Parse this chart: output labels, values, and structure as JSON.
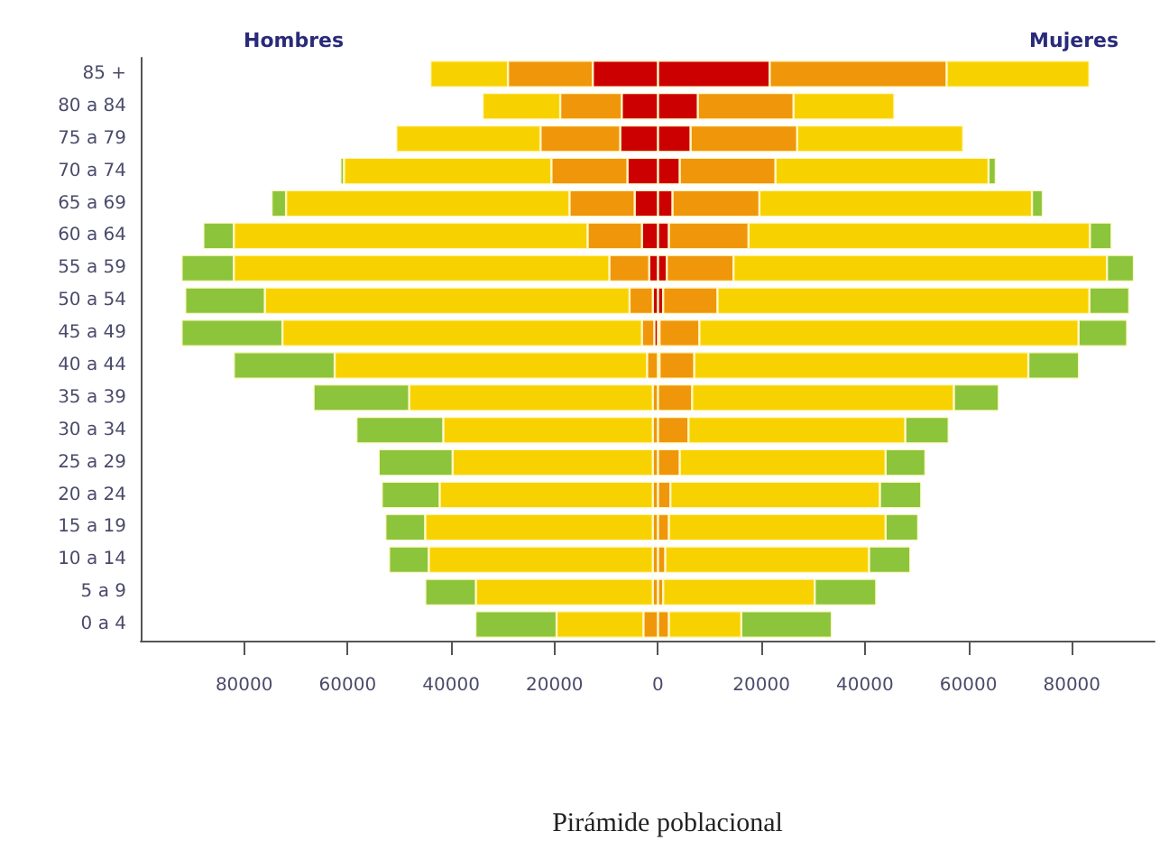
{
  "chart_data": {
    "type": "bar",
    "orientation": "horizontal",
    "stacked": true,
    "title": "Pirámide poblacional",
    "annotations": [
      "Hombres",
      "Mujeres"
    ],
    "categories": [
      "85 +",
      "80 a 84",
      "75 a 79",
      "70 a 74",
      "65 a 69",
      "60 a 64",
      "55 a 59",
      "50 a 54",
      "45 a 49",
      "40 a 44",
      "35 a 39",
      "30 a 34",
      "25 a 29",
      "20 a 24",
      "15 a 19",
      "10 a 14",
      "5 a 9",
      "0 a 4"
    ],
    "series": [
      {
        "color": "#cc0000",
        "values": [
          -12600,
          -7000,
          -7300,
          -5900,
          -4500,
          -3100,
          -1700,
          -1000,
          -700,
          null,
          null,
          null,
          null,
          null,
          null,
          null,
          null,
          null
        ]
      },
      {
        "color": "#f0960a",
        "values": [
          -16400,
          -11900,
          -15400,
          -14700,
          -12600,
          -10500,
          -7700,
          -4500,
          -2400,
          -2100,
          -1000,
          -1000,
          -1000,
          -1000,
          -1000,
          -1000,
          -1000,
          -2800
        ]
      },
      {
        "color": "#f8d200",
        "values": [
          -15000,
          -15000,
          -27900,
          -40100,
          -54800,
          -68400,
          -72600,
          -70500,
          -69500,
          -60400,
          -47100,
          -40500,
          -38700,
          -41200,
          -44000,
          -43300,
          -34200,
          -16800
        ]
      },
      {
        "color": "#8cc43c",
        "values": [
          null,
          null,
          null,
          -700,
          -2800,
          -5900,
          -10100,
          -15400,
          -19500,
          -19500,
          -18500,
          -16800,
          -14300,
          -11200,
          -7700,
          -7700,
          -9800,
          -15700
        ]
      },
      {
        "color": "#cc0000",
        "values": [
          21600,
          7700,
          6300,
          4200,
          2800,
          2100,
          1700,
          1000,
          300,
          300,
          null,
          null,
          null,
          null,
          null,
          null,
          null,
          null
        ]
      },
      {
        "color": "#f0960a",
        "values": [
          34200,
          18500,
          20600,
          18500,
          16800,
          15400,
          12900,
          10500,
          7700,
          6700,
          6600,
          5900,
          4200,
          2400,
          2100,
          1400,
          1000,
          2100
        ]
      },
      {
        "color": "#f8d200",
        "values": [
          27600,
          19500,
          32100,
          41200,
          52700,
          66000,
          72200,
          71900,
          73300,
          64600,
          50600,
          41900,
          39800,
          40500,
          41900,
          39400,
          29300,
          14000
        ]
      },
      {
        "color": "#8cc43c",
        "values": [
          null,
          null,
          null,
          1400,
          2100,
          4200,
          5200,
          7700,
          9400,
          9800,
          8700,
          8400,
          7700,
          8000,
          6300,
          8000,
          11900,
          17500
        ]
      }
    ],
    "xlim": [
      -100000,
      96000
    ],
    "xticks": [
      {
        "value": -80000,
        "label": "80000"
      },
      {
        "value": -60000,
        "label": "60000"
      },
      {
        "value": -40000,
        "label": "40000"
      },
      {
        "value": -20000,
        "label": "20000"
      },
      0,
      20000,
      40000,
      60000,
      80000
    ],
    "grid": false
  }
}
